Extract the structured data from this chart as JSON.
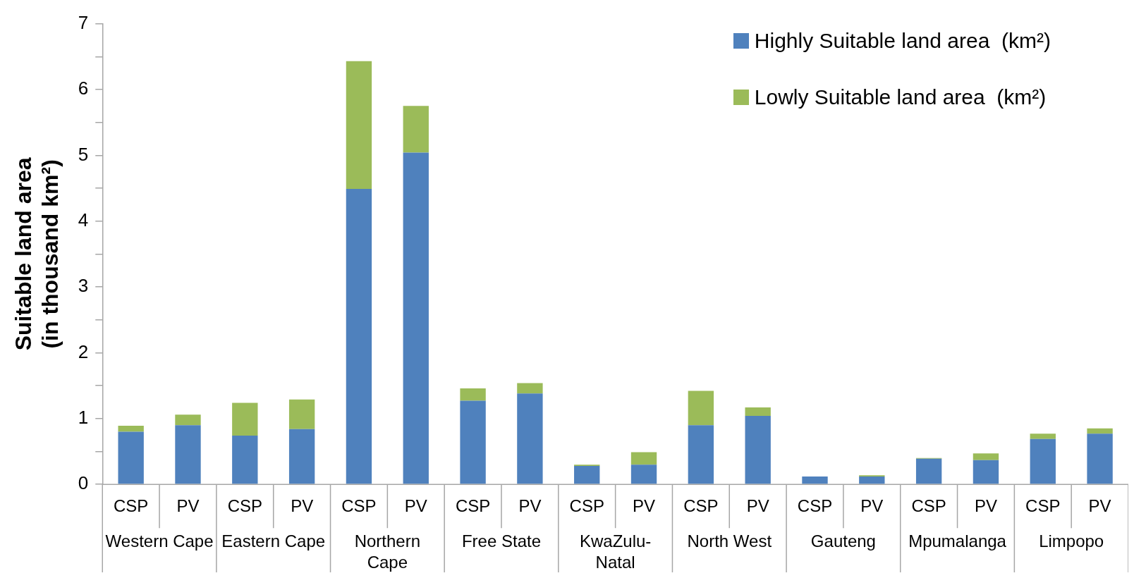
{
  "chart_data": {
    "type": "bar",
    "stacked": true,
    "ylabel": "Suitable land area (in thousand km²)",
    "categories": [
      "CSP",
      "PV",
      "CSP",
      "PV",
      "CSP",
      "PV",
      "CSP",
      "PV",
      "CSP",
      "PV",
      "CSP",
      "PV",
      "CSP",
      "PV",
      "CSP",
      "PV",
      "CSP",
      "PV"
    ],
    "annotations": [
      "Western Cape",
      "Eastern Cape",
      "Northern Cape",
      "Free State",
      "KwaZulu-Natal",
      "North West",
      "Gauteng",
      "Mpumalanga",
      "Limpopo"
    ],
    "series": [
      {
        "name": "Highly Suitable land area  (km²)",
        "color": "#4f81bd",
        "values": [
          0.8,
          0.9,
          0.74,
          0.84,
          4.49,
          5.04,
          1.27,
          1.38,
          0.28,
          0.3,
          0.9,
          1.04,
          0.12,
          0.12,
          0.39,
          0.37,
          0.69,
          0.77
        ]
      },
      {
        "name": "Lowly Suitable land area  (km²)",
        "color": "#9bbb59",
        "values": [
          0.09,
          0.16,
          0.5,
          0.45,
          1.94,
          0.71,
          0.19,
          0.16,
          0.02,
          0.19,
          0.52,
          0.13,
          0,
          0.02,
          0.01,
          0.1,
          0.08,
          0.08
        ]
      }
    ],
    "ylim": [
      0,
      7
    ],
    "yticks": [
      0,
      {
        "value": 0.5,
        "label": null
      },
      1,
      {
        "value": 1.5,
        "label": null
      },
      2,
      {
        "value": 2.5,
        "label": null
      },
      3,
      {
        "value": 3.5,
        "label": null
      },
      4,
      {
        "value": 4.5,
        "label": null
      },
      5,
      {
        "value": 5.5,
        "label": null
      },
      6,
      {
        "value": 6.5,
        "label": null
      },
      7
    ],
    "grid": false,
    "legend": "top right"
  }
}
